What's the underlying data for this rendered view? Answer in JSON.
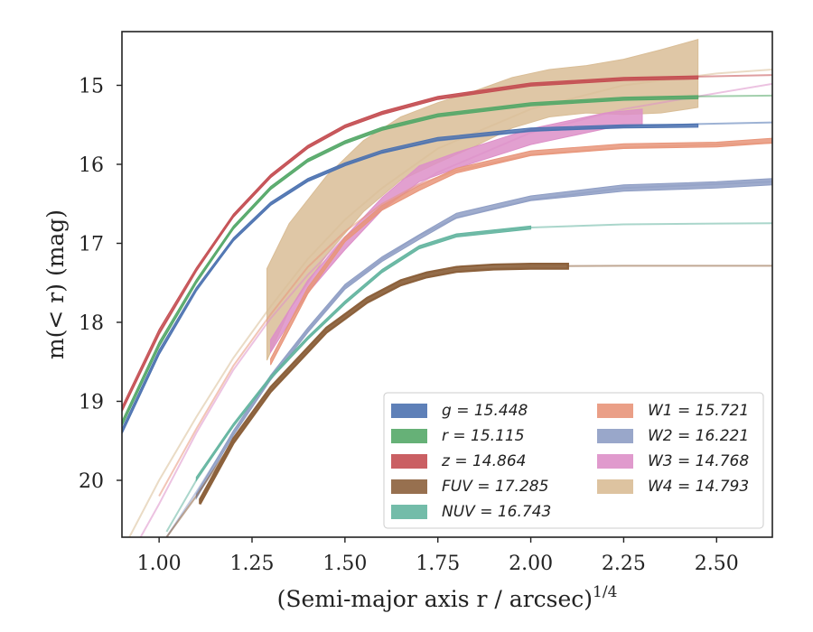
{
  "chart_data": {
    "type": "line",
    "xlabel": "(Semi-major axis r / arcsec)^1/4",
    "ylabel": "m(< r) (mag)",
    "xlim": [
      0.9,
      2.65
    ],
    "ylim": [
      20.72,
      14.32
    ],
    "y_inverted": true,
    "grid": false,
    "legend_position": "lower-right",
    "legend_columns": 2,
    "xticks": [
      {
        "value": 1.0,
        "label": "1.00"
      },
      {
        "value": 1.25,
        "label": "1.25"
      },
      {
        "value": 1.5,
        "label": "1.50"
      },
      {
        "value": 1.75,
        "label": "1.75"
      },
      {
        "value": 2.0,
        "label": "2.00"
      },
      {
        "value": 2.25,
        "label": "2.25"
      },
      {
        "value": 2.5,
        "label": "2.50"
      }
    ],
    "yticks": [
      {
        "value": 15,
        "label": "15"
      },
      {
        "value": 16,
        "label": "16"
      },
      {
        "value": 17,
        "label": "17"
      },
      {
        "value": 18,
        "label": "18"
      },
      {
        "value": 19,
        "label": "19"
      },
      {
        "value": 20,
        "label": "20"
      }
    ],
    "series": [
      {
        "name": "g = 15.448",
        "band": "g",
        "value": "15.448",
        "color": "#4c72b0",
        "model": {
          "x": [
            0.9,
            1.0,
            1.1,
            1.2,
            1.3,
            1.4,
            1.5,
            1.6,
            1.75,
            2.0,
            2.25,
            2.45,
            2.65
          ],
          "y": [
            19.4,
            18.4,
            17.6,
            16.95,
            16.5,
            16.2,
            16.0,
            15.85,
            15.7,
            15.58,
            15.52,
            15.49,
            15.47
          ]
        },
        "data": {
          "x": [
            0.9,
            1.0,
            1.1,
            1.2,
            1.3,
            1.4,
            1.5,
            1.6,
            1.75,
            2.0,
            2.25,
            2.45
          ],
          "y": [
            19.38,
            18.38,
            17.58,
            16.95,
            16.5,
            16.2,
            16.0,
            15.84,
            15.68,
            15.56,
            15.52,
            15.51
          ],
          "err": [
            0.03,
            0.03,
            0.02,
            0.02,
            0.02,
            0.02,
            0.02,
            0.02,
            0.02,
            0.02,
            0.02,
            0.02
          ]
        }
      },
      {
        "name": "r = 15.115",
        "band": "r",
        "value": "15.115",
        "color": "#55a868",
        "model": {
          "x": [
            0.9,
            1.0,
            1.1,
            1.2,
            1.3,
            1.4,
            1.5,
            1.6,
            1.75,
            2.0,
            2.25,
            2.45,
            2.65
          ],
          "y": [
            19.3,
            18.3,
            17.5,
            16.8,
            16.3,
            15.95,
            15.72,
            15.55,
            15.38,
            15.24,
            15.17,
            15.14,
            15.13
          ]
        },
        "data": {
          "x": [
            0.9,
            1.0,
            1.1,
            1.2,
            1.3,
            1.4,
            1.5,
            1.6,
            1.75,
            2.0,
            2.25,
            2.45
          ],
          "y": [
            19.28,
            18.28,
            17.48,
            16.8,
            16.3,
            15.95,
            15.72,
            15.55,
            15.38,
            15.24,
            15.17,
            15.15
          ],
          "err": [
            0.03,
            0.03,
            0.02,
            0.02,
            0.02,
            0.02,
            0.02,
            0.02,
            0.02,
            0.02,
            0.02,
            0.02
          ]
        }
      },
      {
        "name": "z = 14.864",
        "band": "z",
        "value": "14.864",
        "color": "#c44e52",
        "model": {
          "x": [
            0.9,
            1.0,
            1.1,
            1.2,
            1.3,
            1.4,
            1.5,
            1.6,
            1.75,
            2.0,
            2.25,
            2.45,
            2.65
          ],
          "y": [
            19.12,
            18.15,
            17.35,
            16.65,
            16.15,
            15.78,
            15.52,
            15.35,
            15.16,
            14.99,
            14.92,
            14.89,
            14.87
          ]
        },
        "data": {
          "x": [
            0.9,
            1.0,
            1.1,
            1.2,
            1.3,
            1.4,
            1.5,
            1.6,
            1.75,
            2.0,
            2.25,
            2.45
          ],
          "y": [
            19.1,
            18.12,
            17.33,
            16.65,
            16.15,
            15.78,
            15.52,
            15.35,
            15.16,
            14.99,
            14.92,
            14.9
          ],
          "err": [
            0.03,
            0.03,
            0.02,
            0.02,
            0.02,
            0.02,
            0.02,
            0.02,
            0.02,
            0.02,
            0.02,
            0.02
          ]
        }
      },
      {
        "name": "FUV = 17.285",
        "band": "FUV",
        "value": "17.285",
        "color": "#8c613c",
        "model": {
          "x": [
            1.02,
            1.1,
            1.2,
            1.3,
            1.45,
            1.56,
            1.65,
            1.72,
            1.8,
            2.0,
            2.25,
            2.5,
            2.65
          ],
          "y": [
            20.72,
            20.2,
            19.5,
            18.85,
            18.1,
            17.72,
            17.5,
            17.4,
            17.33,
            17.29,
            17.285,
            17.285,
            17.285
          ]
        },
        "data": {
          "x": [
            1.11,
            1.2,
            1.3,
            1.45,
            1.56,
            1.65,
            1.72,
            1.8,
            1.9,
            2.0,
            2.1
          ],
          "y": [
            20.27,
            19.5,
            18.85,
            18.1,
            17.72,
            17.5,
            17.4,
            17.33,
            17.3,
            17.29,
            17.29
          ],
          "err": [
            0.03,
            0.03,
            0.03,
            0.03,
            0.03,
            0.03,
            0.03,
            0.03,
            0.03,
            0.03,
            0.03
          ]
        }
      },
      {
        "name": "NUV = 16.743",
        "band": "NUV",
        "value": "16.743",
        "color": "#64b5a0",
        "model": {
          "x": [
            1.02,
            1.1,
            1.2,
            1.3,
            1.4,
            1.5,
            1.6,
            1.7,
            1.8,
            2.0,
            2.25,
            2.5,
            2.65
          ],
          "y": [
            20.65,
            20.0,
            19.3,
            18.7,
            18.2,
            17.75,
            17.35,
            17.05,
            16.9,
            16.8,
            16.76,
            16.75,
            16.745
          ]
        },
        "data": {
          "x": [
            1.1,
            1.2,
            1.3,
            1.4,
            1.5,
            1.6,
            1.7,
            1.8,
            2.0
          ],
          "y": [
            19.98,
            19.3,
            18.7,
            18.2,
            17.75,
            17.35,
            17.05,
            16.9,
            16.8
          ],
          "err": [
            0.02,
            0.02,
            0.02,
            0.02,
            0.02,
            0.02,
            0.02,
            0.02,
            0.02
          ]
        }
      },
      {
        "name": "W1 = 15.721",
        "band": "W1",
        "value": "15.721",
        "color": "#e8957a",
        "model": {
          "x": [
            1.0,
            1.1,
            1.2,
            1.3,
            1.4,
            1.5,
            1.6,
            1.7,
            1.8,
            2.0,
            2.25,
            2.5,
            2.65
          ],
          "y": [
            20.2,
            19.35,
            18.55,
            17.9,
            17.3,
            16.85,
            16.5,
            16.25,
            16.08,
            15.88,
            15.79,
            15.75,
            15.73
          ]
        },
        "data": {
          "x": [
            1.3,
            1.4,
            1.5,
            1.6,
            1.7,
            1.8,
            2.0,
            2.25,
            2.5,
            2.65
          ],
          "y": [
            18.5,
            17.6,
            16.95,
            16.55,
            16.3,
            16.08,
            15.86,
            15.77,
            15.75,
            15.7
          ],
          "err": [
            0.04,
            0.04,
            0.03,
            0.03,
            0.03,
            0.03,
            0.03,
            0.03,
            0.03,
            0.03
          ]
        }
      },
      {
        "name": "W2 = 16.221",
        "band": "W2",
        "value": "16.221",
        "color": "#8e9dc4",
        "model": {
          "x": [
            1.02,
            1.1,
            1.2,
            1.3,
            1.4,
            1.5,
            1.6,
            1.7,
            1.8,
            2.0,
            2.25,
            2.5,
            2.65
          ],
          "y": [
            20.72,
            20.15,
            19.4,
            18.7,
            18.1,
            17.55,
            17.2,
            16.9,
            16.68,
            16.45,
            16.3,
            16.25,
            16.22
          ]
        },
        "data": {
          "x": [
            1.1,
            1.2,
            1.3,
            1.4,
            1.5,
            1.6,
            1.7,
            1.8,
            2.0,
            2.25,
            2.5,
            2.65
          ],
          "y": [
            20.2,
            19.4,
            18.7,
            18.1,
            17.55,
            17.2,
            16.92,
            16.65,
            16.43,
            16.3,
            16.26,
            16.22
          ],
          "err": [
            0.03,
            0.03,
            0.03,
            0.03,
            0.03,
            0.03,
            0.03,
            0.03,
            0.03,
            0.04,
            0.04,
            0.04
          ]
        }
      },
      {
        "name": "W3 = 14.768",
        "band": "W3",
        "value": "14.768",
        "color": "#dd8fc8",
        "model": {
          "x": [
            0.95,
            1.0,
            1.1,
            1.2,
            1.3,
            1.4,
            1.5,
            1.6,
            1.75,
            2.0,
            2.25,
            2.5,
            2.65
          ],
          "y": [
            20.72,
            20.3,
            19.4,
            18.6,
            17.95,
            17.4,
            16.92,
            16.55,
            16.1,
            15.6,
            15.3,
            15.1,
            14.98
          ]
        },
        "data": {
          "x": [
            1.3,
            1.4,
            1.5,
            1.6,
            1.7,
            1.8,
            1.9,
            2.0,
            2.1,
            2.2,
            2.3
          ],
          "y": [
            18.3,
            17.55,
            17.0,
            16.5,
            16.12,
            15.95,
            15.8,
            15.65,
            15.55,
            15.45,
            15.4
          ],
          "err": [
            0.08,
            0.08,
            0.08,
            0.08,
            0.1,
            0.1,
            0.1,
            0.1,
            0.1,
            0.1,
            0.1
          ]
        }
      },
      {
        "name": "W4 = 14.793",
        "band": "W4",
        "value": "14.793",
        "color": "#d9bd96",
        "model": {
          "x": [
            0.92,
            1.0,
            1.1,
            1.2,
            1.3,
            1.4,
            1.5,
            1.6,
            1.75,
            2.0,
            2.25,
            2.5,
            2.65
          ],
          "y": [
            20.72,
            20.0,
            19.2,
            18.45,
            17.8,
            17.2,
            16.7,
            16.3,
            15.8,
            15.3,
            15.0,
            14.85,
            14.8
          ]
        },
        "data": {
          "x": [
            1.29,
            1.35,
            1.45,
            1.55,
            1.65,
            1.75,
            1.85,
            1.95,
            2.05,
            2.15,
            2.25,
            2.35,
            2.45
          ],
          "y": [
            17.9,
            17.3,
            16.65,
            16.15,
            15.8,
            15.6,
            15.42,
            15.22,
            15.1,
            15.05,
            15.02,
            14.95,
            14.85
          ],
          "err": [
            0.58,
            0.55,
            0.5,
            0.45,
            0.4,
            0.38,
            0.35,
            0.32,
            0.3,
            0.3,
            0.35,
            0.4,
            0.43
          ]
        }
      }
    ]
  }
}
